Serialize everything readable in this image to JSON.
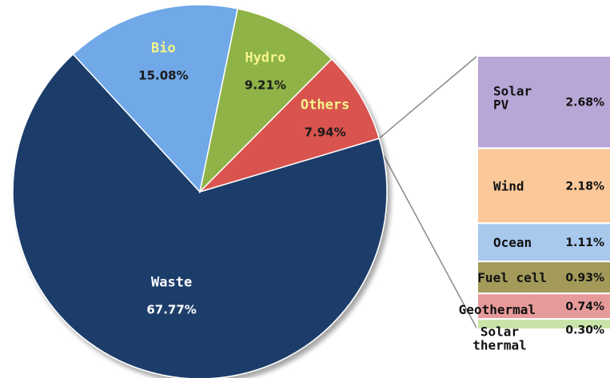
{
  "chart_data": [
    {
      "type": "pie",
      "slices": [
        {
          "label": "Waste",
          "value": 67.77,
          "value_label": "67.77%",
          "color": "#1f3d6b"
        },
        {
          "label": "Bio",
          "value": 15.08,
          "value_label": "15.08%",
          "color": "#6fa8e8"
        },
        {
          "label": "Hydro",
          "value": 9.21,
          "value_label": "9.21%",
          "color": "#8fb346"
        },
        {
          "label": "Others",
          "value": 7.94,
          "value_label": "7.94%",
          "color": "#d9534f"
        }
      ]
    },
    {
      "type": "bar",
      "stacked": true,
      "breakdown_of": "Others",
      "segments": [
        {
          "label": "Solar PV",
          "label_lines": [
            "Solar",
            "PV"
          ],
          "value": 2.68,
          "value_label": "2.68%",
          "color": "#b7a6d6"
        },
        {
          "label": "Wind",
          "label_lines": [
            "Wind"
          ],
          "value": 2.18,
          "value_label": "2.18%",
          "color": "#fbc89a"
        },
        {
          "label": "Ocean",
          "label_lines": [
            "Ocean"
          ],
          "value": 1.11,
          "value_label": "1.11%",
          "color": "#a8c8ec"
        },
        {
          "label": "Fuel cell",
          "label_lines": [
            "Fuel cell"
          ],
          "value": 0.93,
          "value_label": "0.93%",
          "color": "#a39a5a"
        },
        {
          "label": "Geothermal",
          "label_lines": [
            "Geothermal"
          ],
          "value": 0.74,
          "value_label": "0.74%",
          "color": "#e79a9a"
        },
        {
          "label": "Solar thermal",
          "label_lines": [
            "Solar",
            "thermal"
          ],
          "value": 0.3,
          "value_label": "0.30%",
          "color": "#c9e4a8"
        }
      ]
    }
  ]
}
